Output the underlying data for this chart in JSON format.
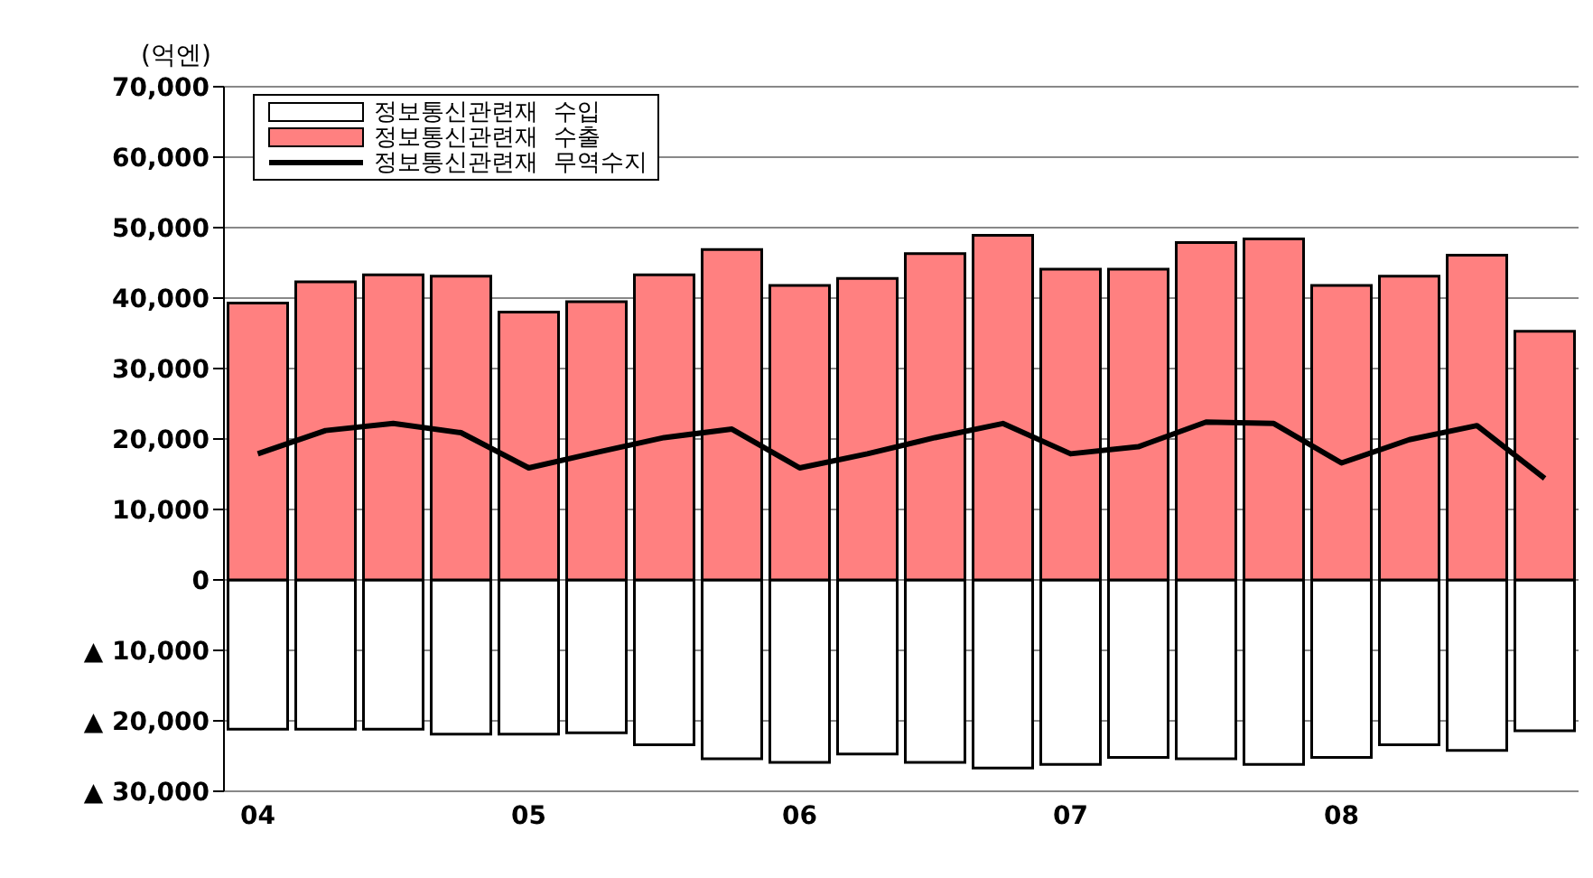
{
  "chart_data": {
    "type": "bar",
    "ylabel": "(억엔)",
    "stacked": true,
    "categories": [
      "04",
      null,
      null,
      null,
      "05",
      null,
      null,
      null,
      "06",
      null,
      null,
      null,
      "07",
      null,
      null,
      null,
      "08",
      null,
      null,
      null
    ],
    "series": [
      {
        "name": "정보통신관련재  수입",
        "color": "#ffffff",
        "values": [
          -21200,
          -21200,
          -21200,
          -21900,
          -21900,
          -21700,
          -23400,
          -25400,
          -25900,
          -24700,
          -25900,
          -26700,
          -26200,
          -25200,
          -25400,
          -26200,
          -25200,
          -23400,
          -24200,
          -21400
        ]
      },
      {
        "name": "정보통신관련재  수출",
        "color": "#ff8080",
        "values": [
          39300,
          42300,
          43300,
          43100,
          38000,
          39500,
          43300,
          46900,
          41800,
          42800,
          46300,
          48900,
          44100,
          44100,
          47900,
          48400,
          41800,
          43100,
          46100,
          35300
        ]
      },
      {
        "name": "정보통신관련재  무역수지",
        "type": "line",
        "color": "#000000",
        "values": [
          17900,
          21200,
          22200,
          20900,
          15900,
          18100,
          20200,
          21400,
          15900,
          17900,
          20200,
          22200,
          17900,
          18900,
          22400,
          22200,
          16600,
          19900,
          21900,
          14400
        ]
      }
    ],
    "ylim": [
      -30000,
      70000
    ],
    "yticks": [
      {
        "value": -30000,
        "label": "▲ 30,000"
      },
      {
        "value": -20000,
        "label": "▲ 20,000"
      },
      {
        "value": -10000,
        "label": "▲ 10,000"
      },
      0,
      {
        "value": 10000,
        "label": "10,000"
      },
      {
        "value": 20000,
        "label": "20,000"
      },
      {
        "value": 30000,
        "label": "30,000"
      },
      {
        "value": 40000,
        "label": "40,000"
      },
      {
        "value": 50000,
        "label": "50,000"
      },
      {
        "value": 60000,
        "label": "60,000"
      },
      {
        "value": 70000,
        "label": "70,000"
      }
    ],
    "grid": "y",
    "legend": "top left",
    "marker": "none"
  }
}
